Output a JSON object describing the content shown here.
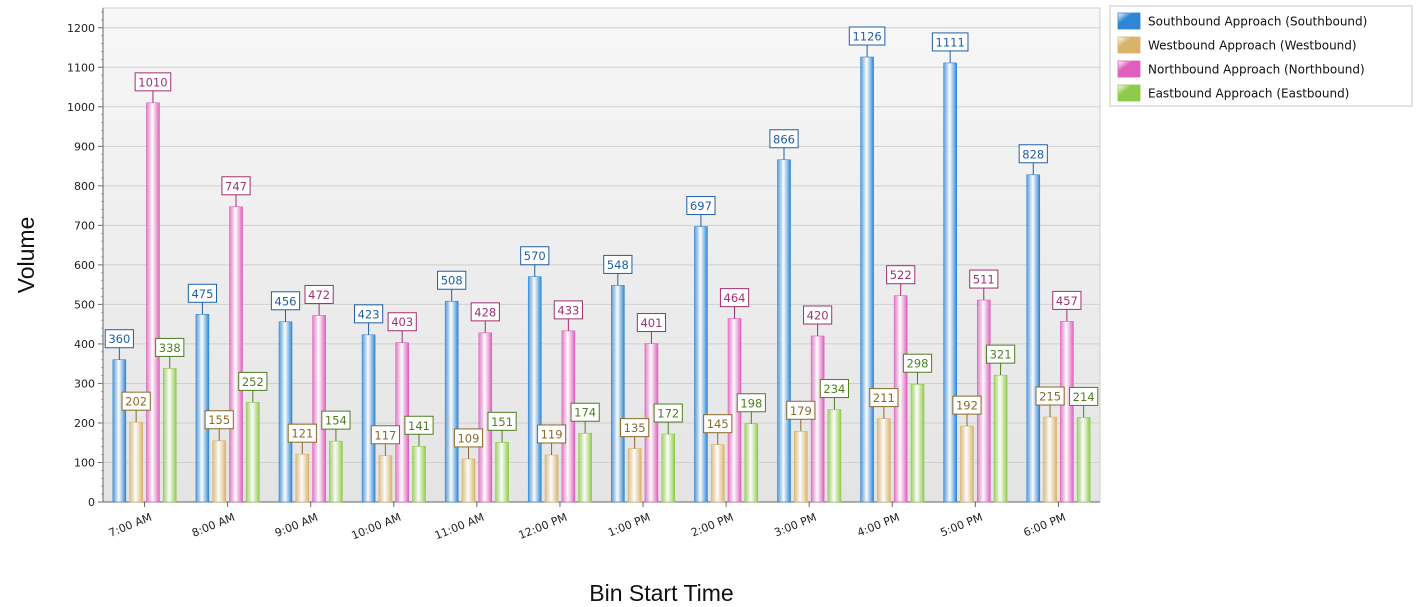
{
  "chart_data": {
    "type": "bar",
    "title": "",
    "xlabel": "Bin Start Time",
    "ylabel": "Volume",
    "ylim": [
      0,
      1250
    ],
    "yticks": [
      0,
      100,
      200,
      300,
      400,
      500,
      600,
      700,
      800,
      900,
      1000,
      1100,
      1200
    ],
    "grid": true,
    "legend_position": "top-right",
    "categories": [
      "7:00 AM",
      "8:00 AM",
      "9:00 AM",
      "10:00 AM",
      "11:00 AM",
      "12:00 PM",
      "1:00 PM",
      "2:00 PM",
      "3:00 PM",
      "4:00 PM",
      "5:00 PM",
      "6:00 PM"
    ],
    "series": [
      {
        "name": "Southbound Approach (Southbound)",
        "values": [
          360,
          475,
          456,
          423,
          508,
          570,
          548,
          697,
          866,
          1126,
          1111,
          828
        ],
        "color": "#2e86d4",
        "label_color": "#1f5fa8"
      },
      {
        "name": "Westbound Approach (Westbound)",
        "values": [
          202,
          155,
          121,
          117,
          109,
          119,
          135,
          145,
          179,
          211,
          192,
          215
        ],
        "color": "#d9b36a",
        "label_color": "#8a6a2a"
      },
      {
        "name": "Northbound Approach (Northbound)",
        "values": [
          1010,
          747,
          472,
          403,
          428,
          433,
          401,
          464,
          420,
          522,
          511,
          457
        ],
        "color": "#e05fbd",
        "label_color": "#a3306f"
      },
      {
        "name": "Eastbound Approach (Eastbound)",
        "values": [
          338,
          252,
          154,
          141,
          151,
          174,
          172,
          198,
          234,
          298,
          321,
          214
        ],
        "color": "#8fcb4a",
        "label_color": "#4e7f22"
      }
    ]
  }
}
